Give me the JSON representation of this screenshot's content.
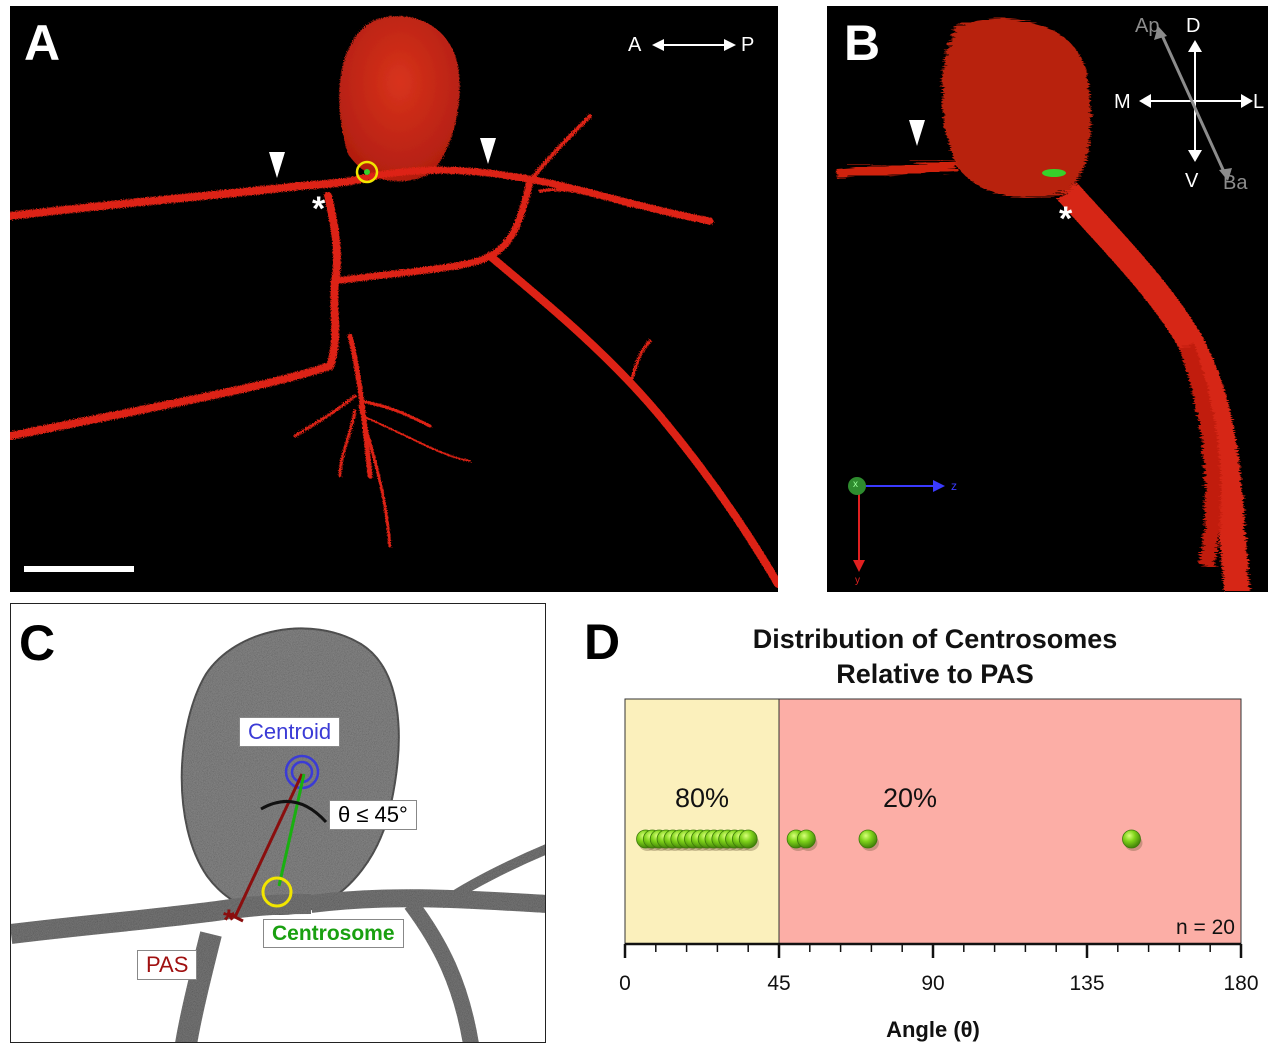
{
  "panels": {
    "a": {
      "letter": "A",
      "axis": {
        "left": "A",
        "right": "P"
      },
      "asterisk": "*"
    },
    "b": {
      "letter": "B",
      "compass": {
        "ap": "Ap",
        "ba": "Ba",
        "d": "D",
        "v": "V",
        "m": "M",
        "l": "L"
      },
      "asterisk": "*",
      "axes": {
        "x": "x",
        "y": "y",
        "z": "z"
      }
    },
    "c": {
      "letter": "C",
      "centroid_label": "Centroid",
      "angle_label": "θ ≤ 45°",
      "centrosome_label": "Centrosome",
      "pas_label": "PAS",
      "asterisk": "*"
    },
    "d": {
      "letter": "D"
    }
  },
  "colors": {
    "red_signal": "#e02010",
    "green_signal": "#37d12a",
    "yellow_circle": "#f2e600",
    "centroid_blue": "#3b3bd6",
    "pas_red": "#a01010",
    "centrosome_green": "#19a010",
    "zone_low": "#fbf0bc",
    "zone_high": "#fcaea6"
  },
  "chart_data": {
    "type": "scatter",
    "title": "Distribution of Centrosomes Relative to PAS",
    "title_lines": [
      "Distribution of Centrosomes",
      "Relative to PAS"
    ],
    "xlabel": "Angle (θ)",
    "xlim": [
      0,
      180
    ],
    "xticks": [
      0,
      45,
      90,
      135,
      180
    ],
    "minor_tick_step": 9,
    "zones": [
      {
        "from": 0,
        "to": 45,
        "label": "80%",
        "color": "#fbf0bc"
      },
      {
        "from": 45,
        "to": 180,
        "label": "20%",
        "color": "#fcaea6"
      }
    ],
    "points": [
      6,
      8,
      10,
      12,
      14,
      16,
      18,
      20,
      22,
      24,
      26,
      28,
      30,
      32,
      34,
      36,
      50,
      53,
      71,
      148
    ],
    "n_label": "n = 20"
  }
}
